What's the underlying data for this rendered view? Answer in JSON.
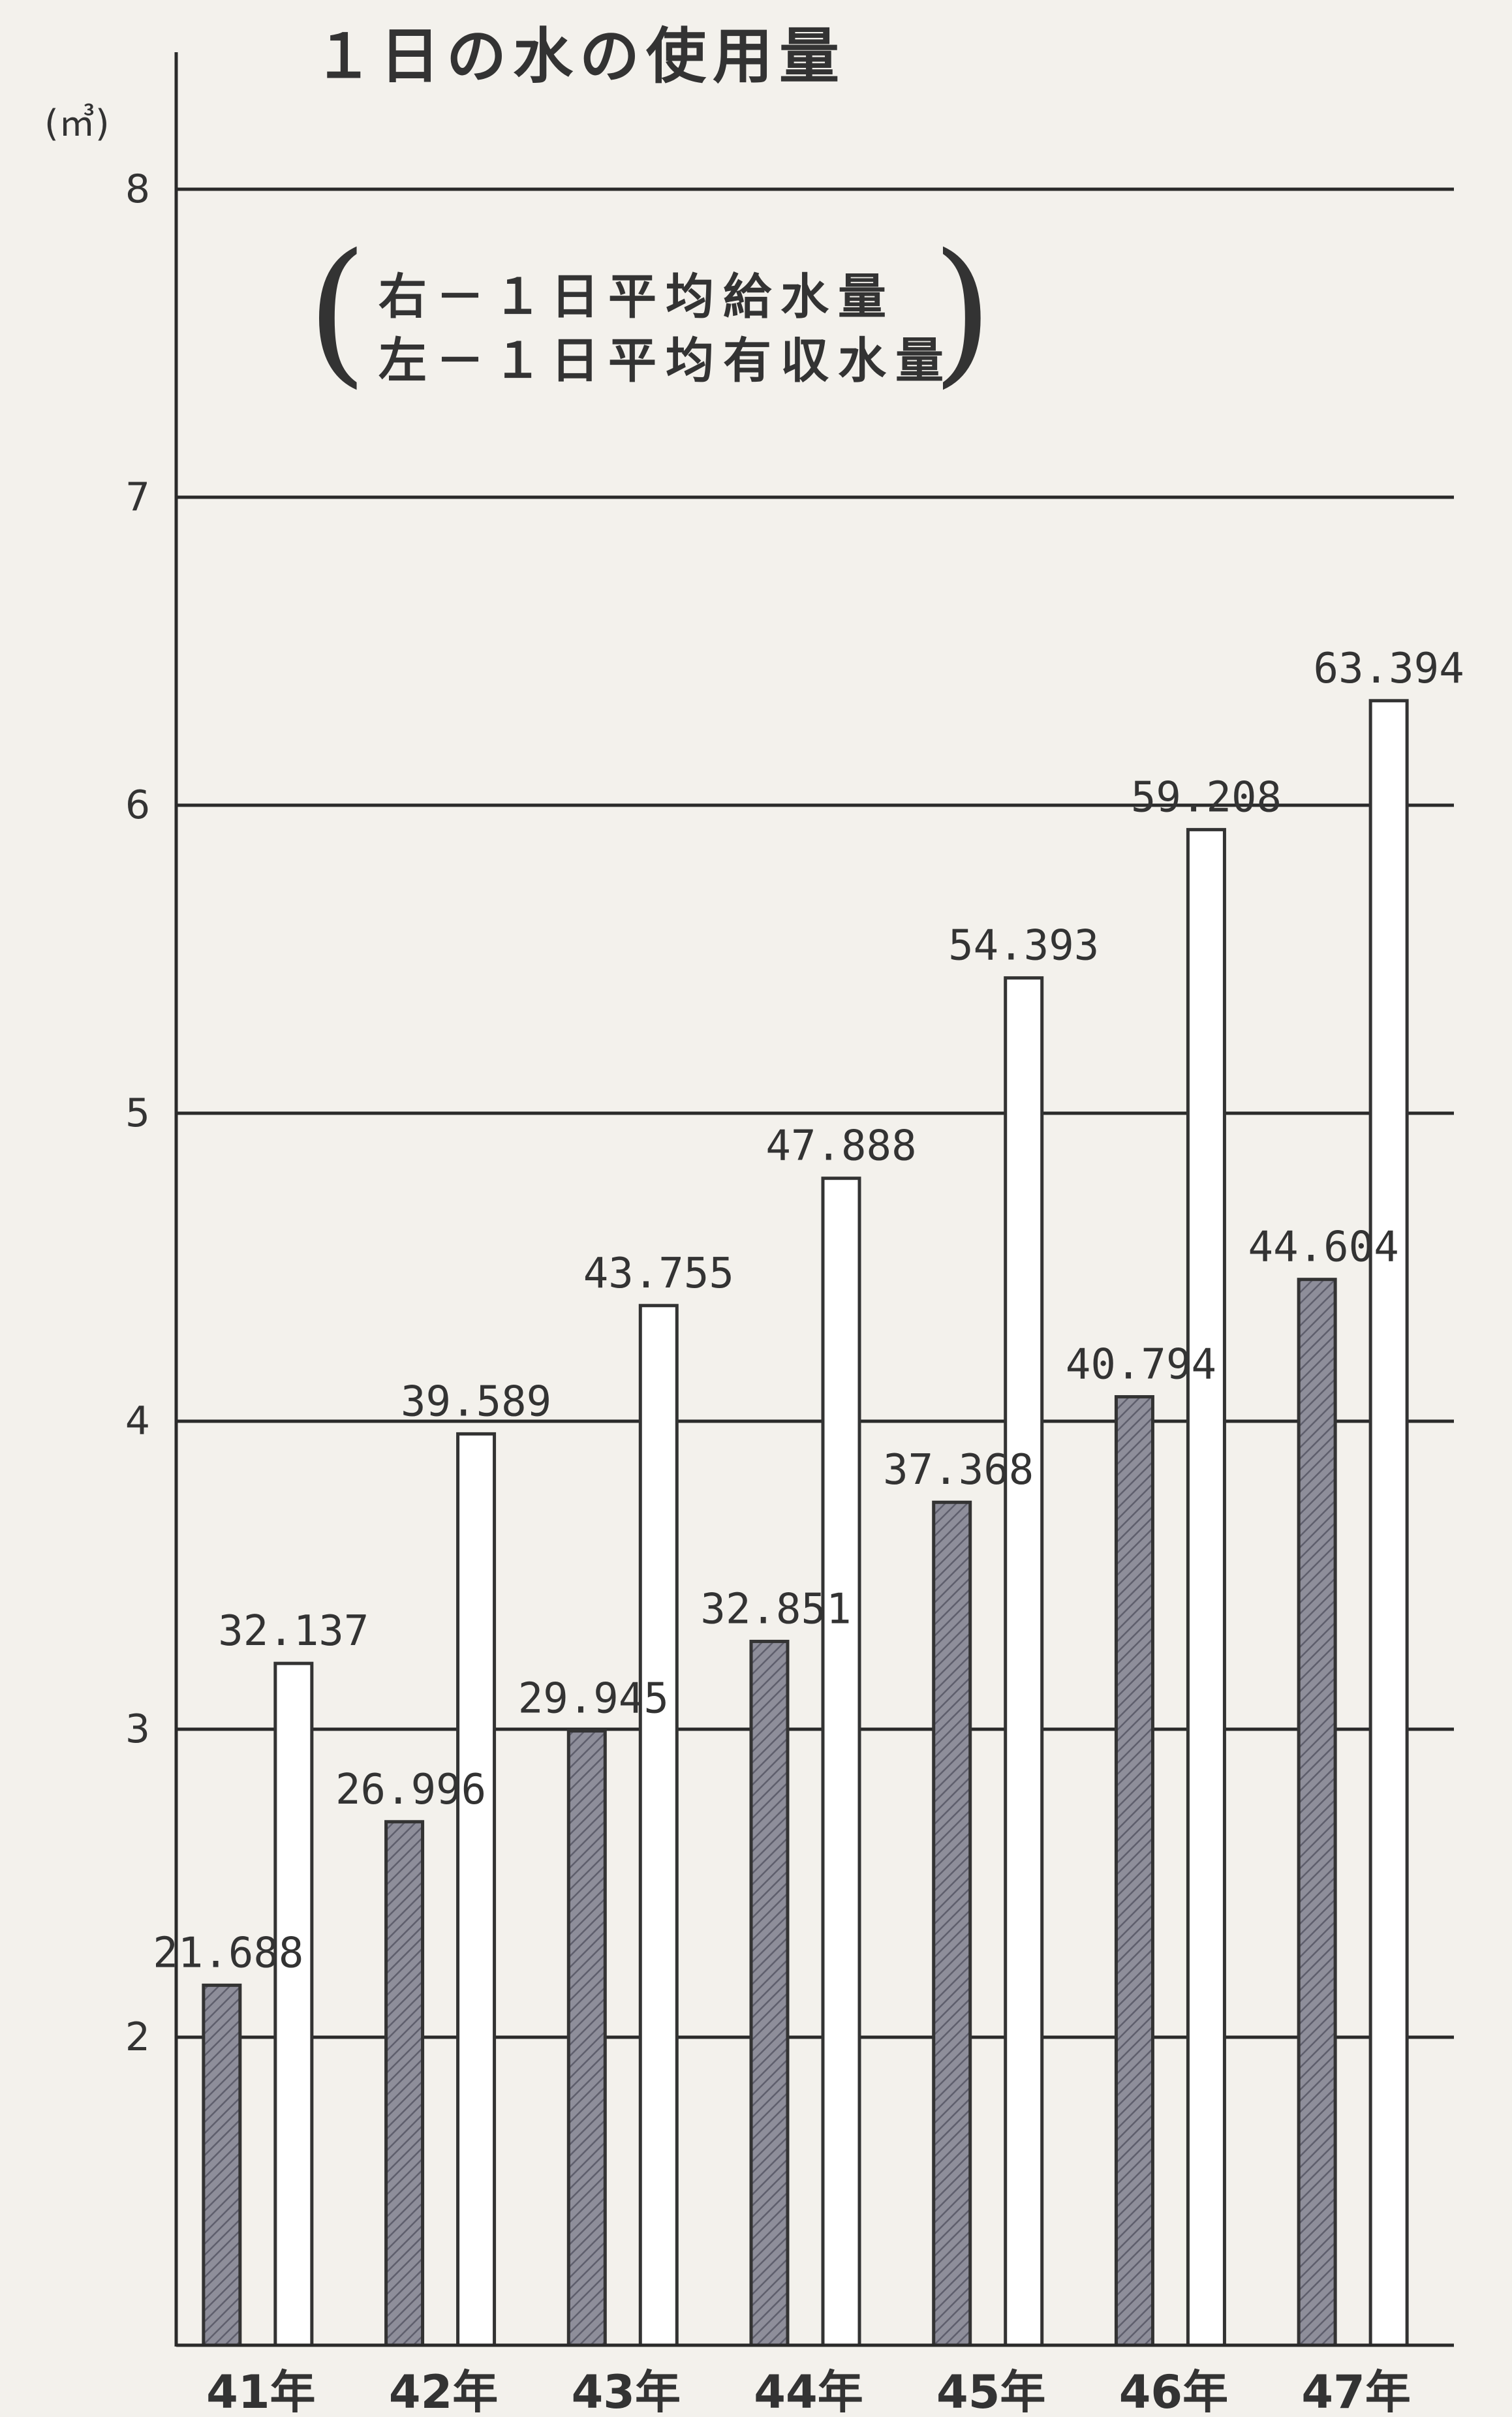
{
  "chart_data": {
    "type": "bar",
    "title": "１日の水の使用量",
    "unit": "(㎥)",
    "legend": {
      "right_label": "右－１日平均給水量",
      "left_label": "左－１日平均有収水量"
    },
    "categories": [
      "41年",
      "42年",
      "43年",
      "44年",
      "45年",
      "46年",
      "47年"
    ],
    "series": [
      {
        "name": "左－１日平均有収水量",
        "values": [
          21.688,
          26.996,
          29.945,
          32.851,
          37.368,
          40.794,
          44.604
        ],
        "labels": [
          "21.688",
          "26.996",
          "29.945",
          "32.851",
          "37.368",
          "40.794",
          "44.604"
        ],
        "color": "#8e8e9a"
      },
      {
        "name": "右－１日平均給水量",
        "values": [
          32.137,
          39.589,
          43.755,
          47.888,
          54.393,
          59.208,
          63.394
        ],
        "labels": [
          "32.137",
          "39.589",
          "43.755",
          "47.888",
          "54.393",
          "59.208",
          "63.394"
        ],
        "color": "#ffffff"
      }
    ],
    "y_ticks": [
      "2",
      "3",
      "4",
      "5",
      "6",
      "7",
      "8"
    ],
    "y_tick_values": [
      2,
      3,
      4,
      5,
      6,
      7,
      8
    ],
    "ylim": [
      1,
      8
    ],
    "value_scale": 10,
    "grid": true
  }
}
